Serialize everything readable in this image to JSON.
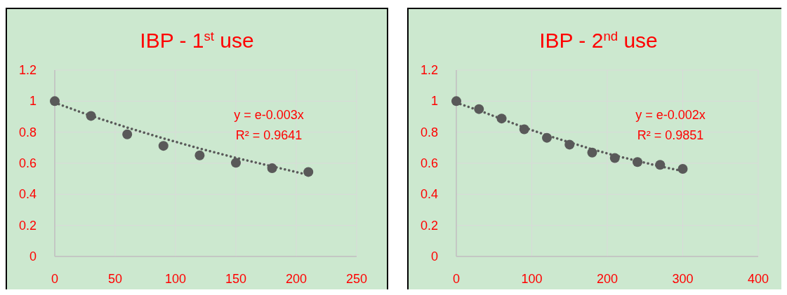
{
  "chart_data": [
    {
      "type": "scatter",
      "title": "IBP - 1$^{st}$ use",
      "x": [
        0,
        30,
        60,
        90,
        120,
        150,
        180,
        210
      ],
      "series": [
        {
          "color": "#595959",
          "marker": "circle",
          "values": [
            1,
            0.905,
            0.786,
            0.712,
            0.651,
            0.603,
            0.568,
            0.544
          ]
        },
        {
          "type": "line",
          "color": "#595959",
          "line_style": "dotted",
          "x": [
            0,
            30,
            60,
            90,
            120,
            150,
            180,
            210
          ],
          "values": [
            0.99,
            0.905,
            0.83,
            0.76,
            0.695,
            0.635,
            0.58,
            0.525
          ]
        }
      ],
      "xlim": [
        0,
        250
      ],
      "xticks": [
        0,
        50,
        100,
        150,
        200,
        250
      ],
      "ylim": [
        0,
        1.2
      ],
      "yticks": [
        0,
        0.2,
        0.4,
        0.6,
        0.8,
        1,
        1.2
      ],
      "grid": true,
      "annotations": [
        "y = e-0.003x",
        "R² = 0.9641"
      ]
    },
    {
      "type": "scatter",
      "title": "IBP - 2$^{nd}$ use",
      "x": [
        0,
        30,
        60,
        90,
        120,
        150,
        180,
        210,
        240,
        270,
        300
      ],
      "series": [
        {
          "color": "#595959",
          "marker": "circle",
          "values": [
            1,
            0.949,
            0.888,
            0.819,
            0.764,
            0.72,
            0.669,
            0.634,
            0.608,
            0.59,
            0.564
          ]
        },
        {
          "type": "line",
          "color": "#595959",
          "line_style": "dotted",
          "x": [
            0,
            30,
            60,
            90,
            120,
            150,
            180,
            210,
            240,
            270,
            300
          ],
          "values": [
            0.99,
            0.94,
            0.885,
            0.83,
            0.78,
            0.735,
            0.69,
            0.65,
            0.615,
            0.58,
            0.55
          ]
        }
      ],
      "xlim": [
        0,
        400
      ],
      "xticks": [
        0,
        100,
        200,
        300,
        400
      ],
      "ylim": [
        0,
        1.2
      ],
      "yticks": [
        0,
        0.2,
        0.4,
        0.6,
        0.8,
        1,
        1.2
      ],
      "grid": true,
      "annotations": [
        "y = e-0.002x",
        "R² = 0.9851"
      ]
    }
  ]
}
